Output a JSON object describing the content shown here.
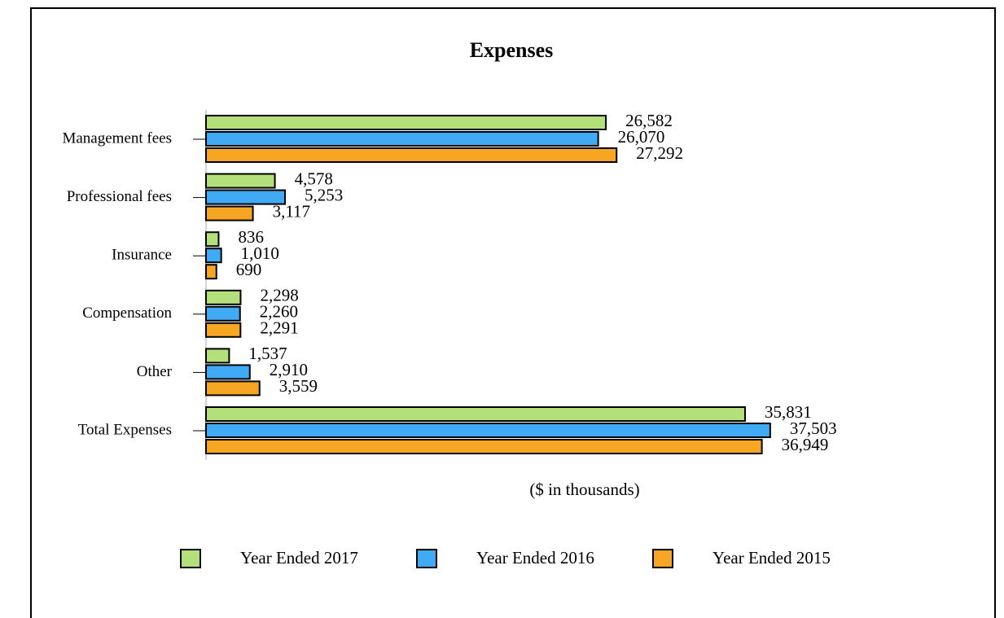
{
  "chart_data": {
    "type": "hbar",
    "title": "Expenses",
    "x_label": "($ in thousands)",
    "categories": [
      "Management fees",
      "Professional fees",
      "Insurance",
      "Compensation",
      "Other",
      "Total Expenses"
    ],
    "series": [
      {
        "name": "Year Ended 2017",
        "color": "#b3e07a",
        "values": [
          26582,
          4578,
          836,
          2298,
          1537,
          35831
        ],
        "value_labels": [
          "26,582",
          "4,578",
          "836",
          "2,298",
          "1,537",
          "35,831"
        ]
      },
      {
        "name": "Year Ended 2016",
        "color": "#40aaf5",
        "values": [
          26070,
          5253,
          1010,
          2260,
          2910,
          37503
        ],
        "value_labels": [
          "26,070",
          "5,253",
          "1,010",
          "2,260",
          "2,910",
          "37,503"
        ]
      },
      {
        "name": "Year Ended 2015",
        "color": "#f6a623",
        "values": [
          27292,
          3117,
          690,
          2291,
          3559,
          36949
        ],
        "value_labels": [
          "27,292",
          "3,117",
          "690",
          "2,291",
          "3,559",
          "36,949"
        ]
      }
    ],
    "xlim": [
      0,
      40000
    ],
    "legend": "bottom"
  }
}
